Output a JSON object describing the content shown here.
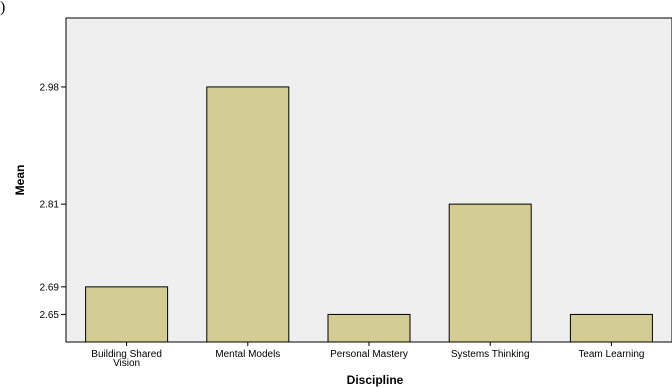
{
  "corner_text": ")",
  "chart_data": {
    "type": "bar",
    "categories": [
      [
        "Building Shared",
        "Vision"
      ],
      [
        "Mental Models"
      ],
      [
        "Personal Mastery"
      ],
      [
        "Systems Thinking"
      ],
      [
        "Team Learning"
      ]
    ],
    "values": [
      2.69,
      2.98,
      2.65,
      2.81,
      2.65
    ],
    "xlabel": "Discipline",
    "ylabel": "Mean",
    "yticks": [
      "2.65",
      "2.69",
      "2.81",
      "2.98"
    ],
    "ylim": [
      2.61,
      3.08
    ],
    "grid": false,
    "colors": {
      "bar_fill": "#d3cd94",
      "bar_stroke": "#000000",
      "plot_background": "#efefef",
      "axis": "#000000"
    }
  }
}
